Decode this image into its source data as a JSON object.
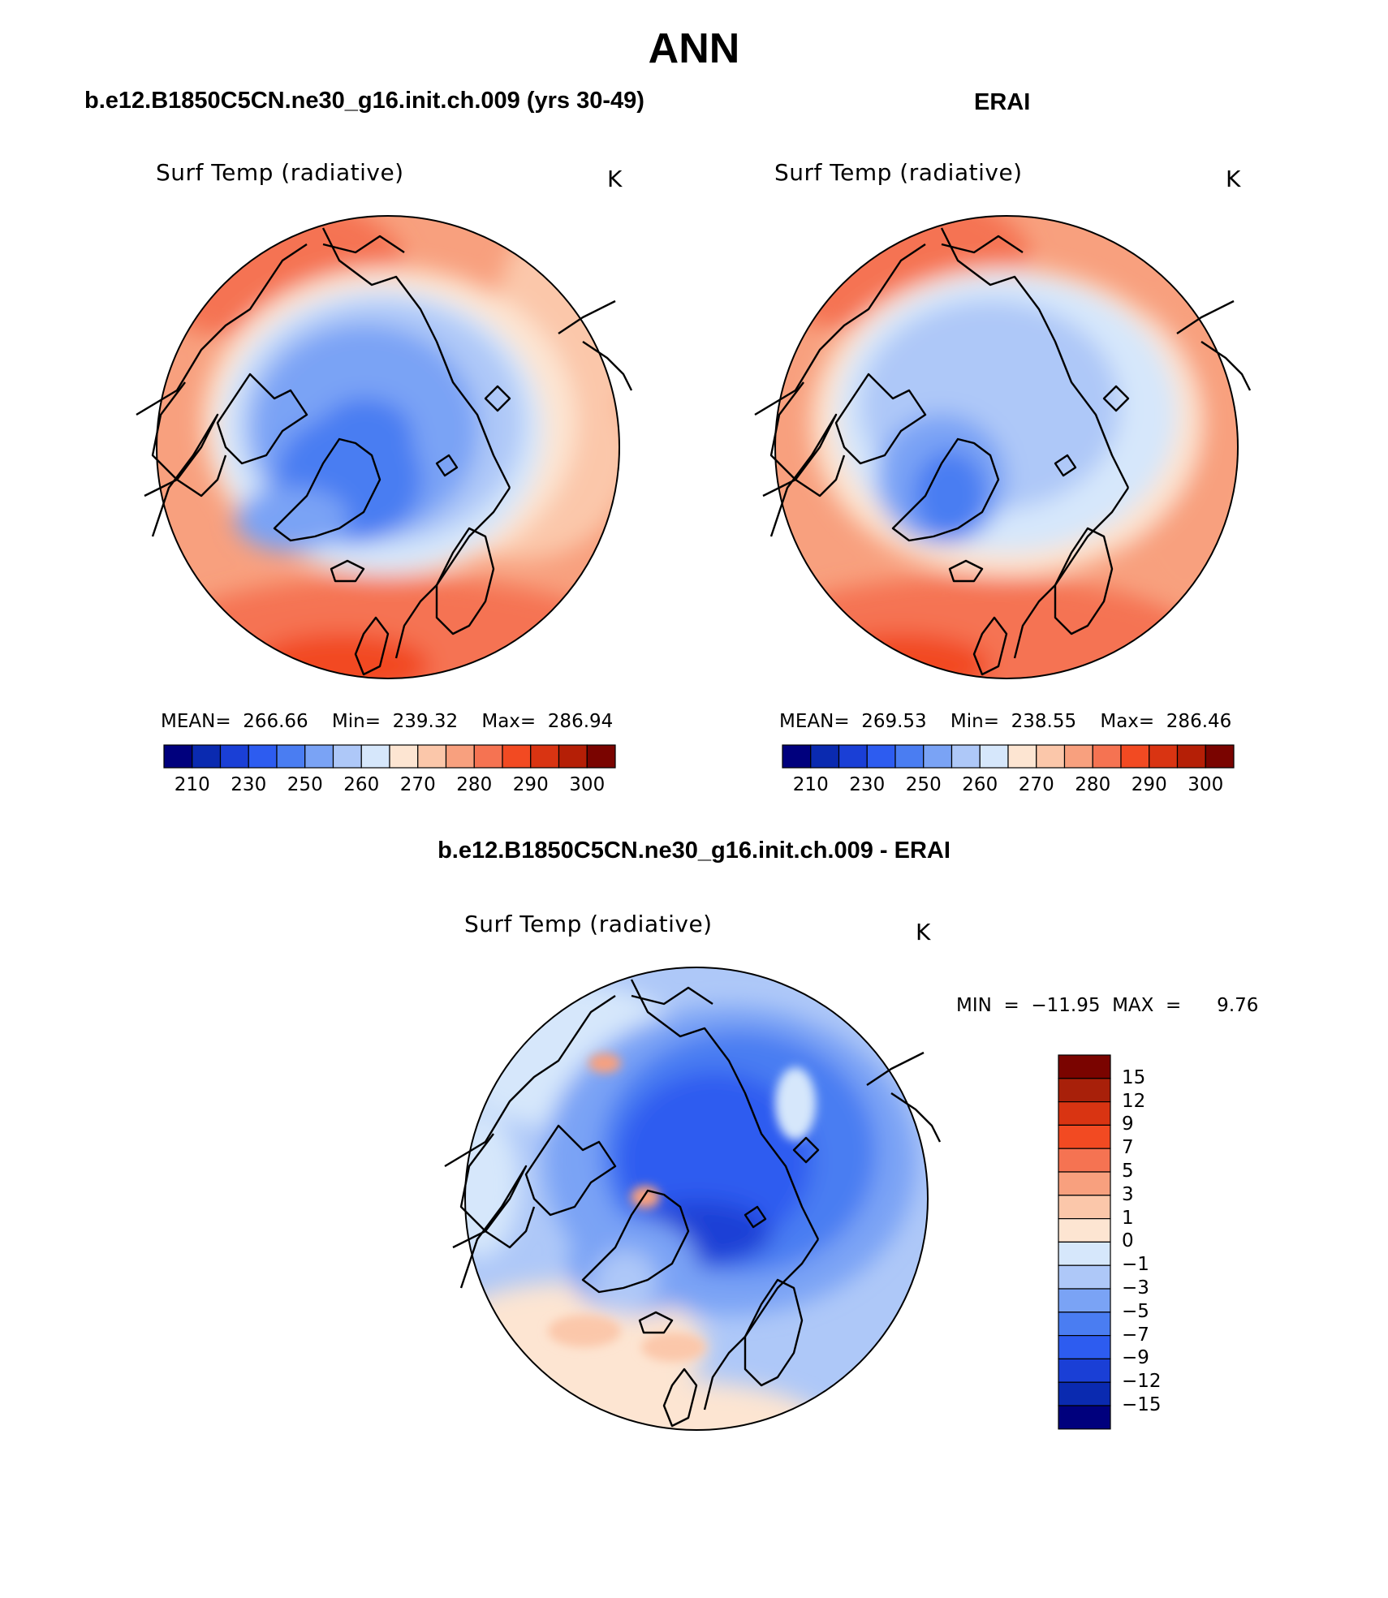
{
  "title": "ANN",
  "panels": [
    {
      "case_title": "b.e12.B1850C5CN.ne30_g16.init.ch.009 (yrs 30-49)",
      "variable": "Surf Temp (radiative)",
      "units": "K",
      "stats_text": "MEAN=  266.66    Min=  239.32    Max=  286.94",
      "colorbar_ticks": [
        "210",
        "230",
        "250",
        "260",
        "270",
        "280",
        "290",
        "300"
      ]
    },
    {
      "case_title": "ERAI",
      "variable": "Surf Temp (radiative)",
      "units": "K",
      "stats_text": "MEAN=  269.53    Min=  238.55    Max=  286.46",
      "colorbar_ticks": [
        "210",
        "230",
        "250",
        "260",
        "270",
        "280",
        "290",
        "300"
      ]
    },
    {
      "case_title": "b.e12.B1850C5CN.ne30_g16.init.ch.009 - ERAI",
      "variable": "Surf Temp (radiative)",
      "units": "K",
      "stats_text": "MIN  =  −11.95  MAX  =      9.76",
      "colorbar_ticks": [
        "15",
        "12",
        "9",
        "7",
        "5",
        "3",
        "1",
        "0",
        "−1",
        "−3",
        "−5",
        "−7",
        "−9",
        "−12",
        "−15"
      ]
    }
  ],
  "colors": {
    "abs_scale": [
      "#00007d",
      "#0a2ab0",
      "#1a3fd6",
      "#2d5cf0",
      "#4a7df2",
      "#7aa3f5",
      "#aec8f8",
      "#d6e7fb",
      "#fde5d2",
      "#fbc7aa",
      "#f8a07e",
      "#f57352",
      "#f24a22",
      "#d93412",
      "#b51f06",
      "#7a0400"
    ],
    "diff_scale": [
      "#7a0400",
      "#a8200a",
      "#d93412",
      "#f24a22",
      "#f57352",
      "#f8a07e",
      "#fbc7aa",
      "#fde5d2",
      "#d6e7fb",
      "#aec8f8",
      "#7aa3f5",
      "#4a7df2",
      "#2d5cf0",
      "#1a3fd6",
      "#0a2ab0",
      "#00007d"
    ]
  }
}
